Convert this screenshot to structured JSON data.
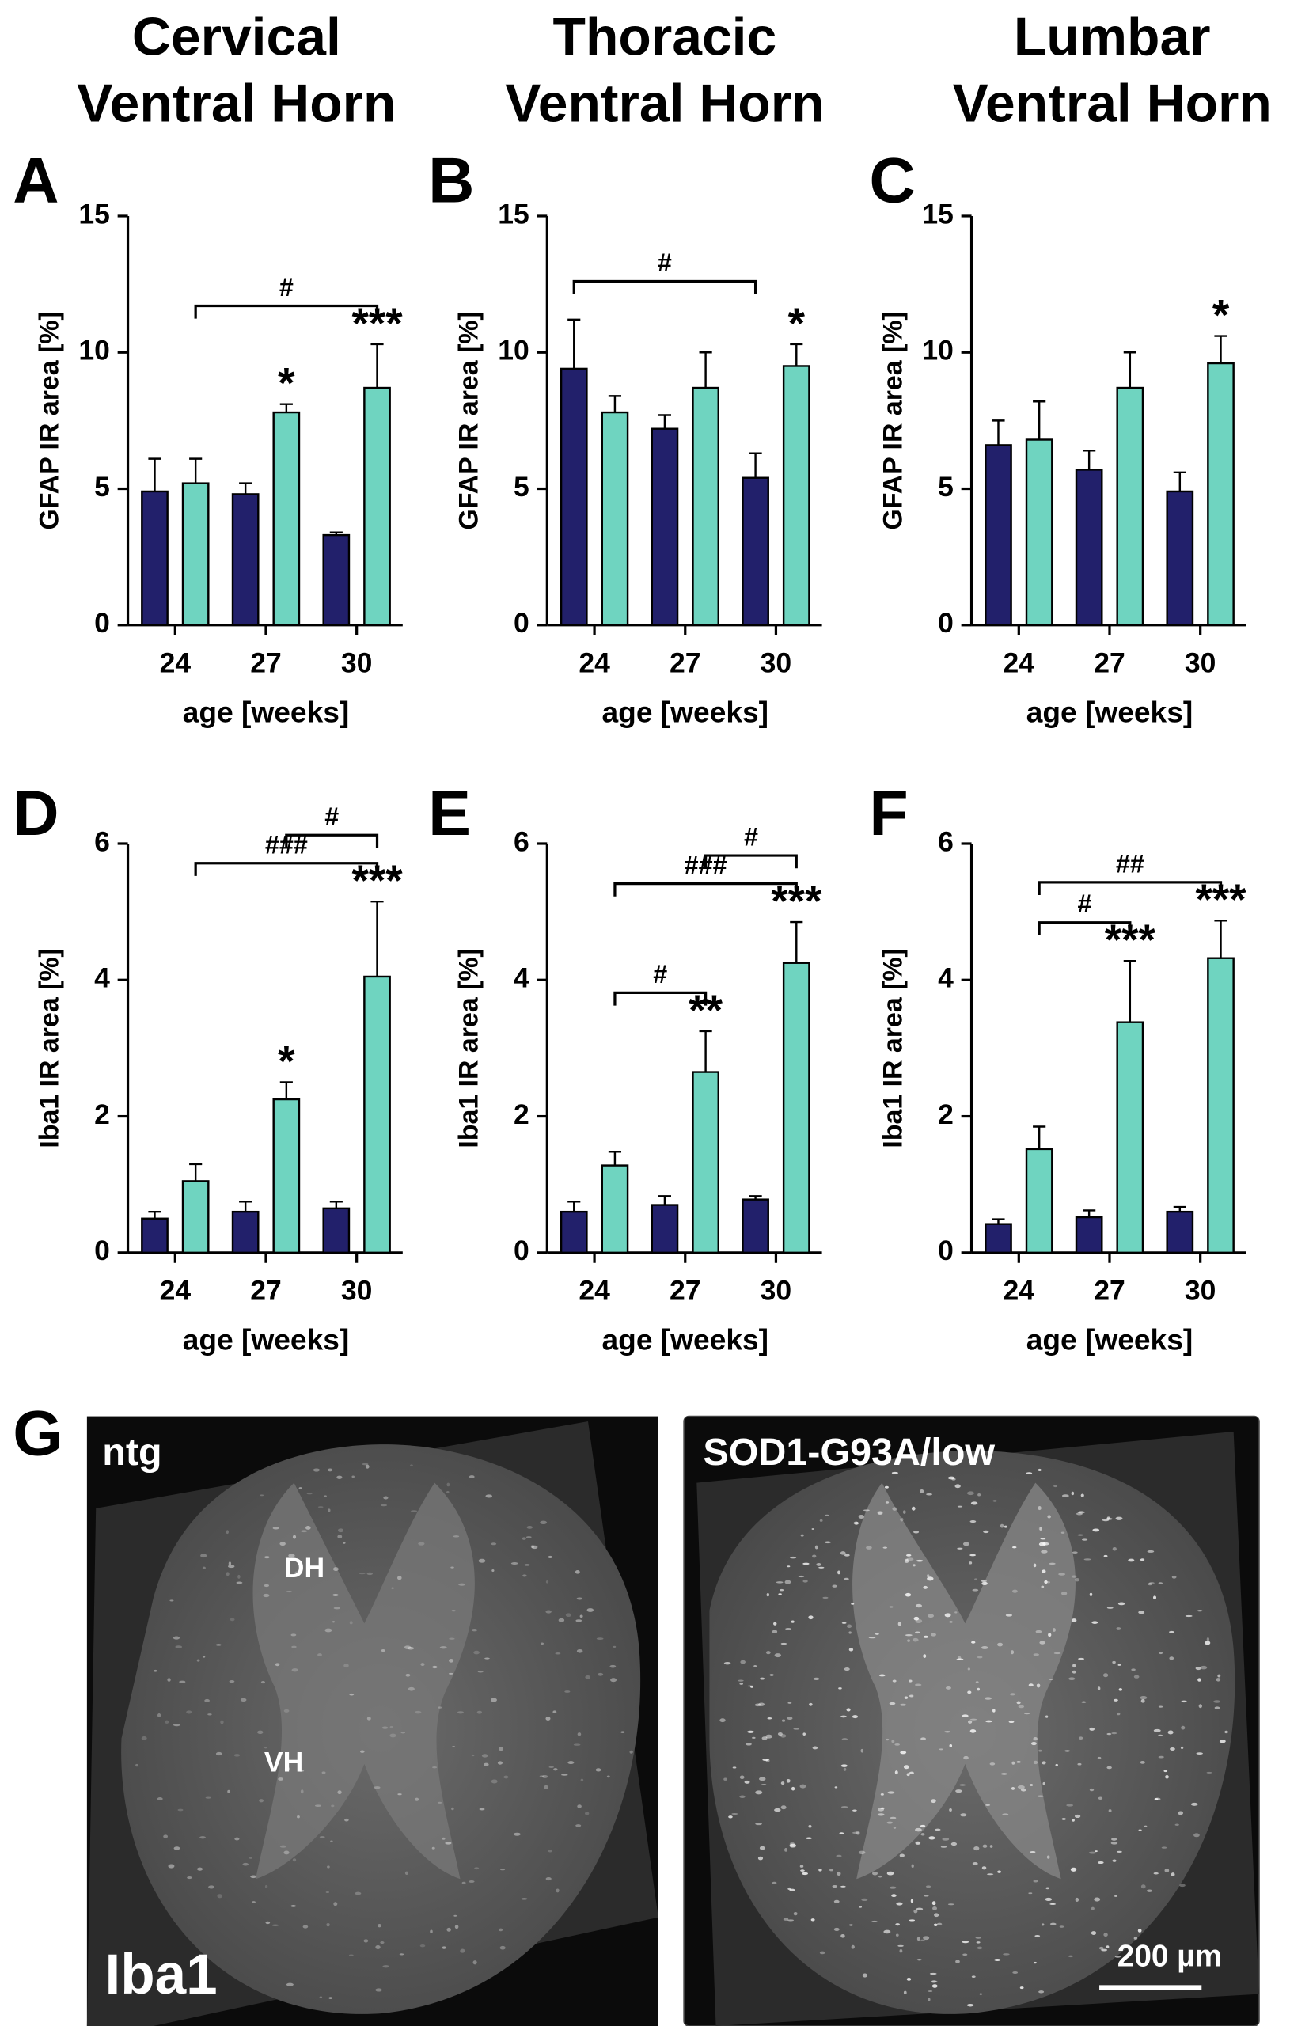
{
  "column_headers": [
    [
      "Cervical",
      "Ventral Horn"
    ],
    [
      "Thoracic",
      "Ventral Horn"
    ],
    [
      "Lumbar",
      "Ventral Horn"
    ]
  ],
  "chart_data": [
    {
      "type": "bar",
      "panel": "A",
      "ylabel": "GFAP IR area [%]",
      "xlabel": "age [weeks]",
      "categories": [
        "24",
        "27",
        "30"
      ],
      "ylim": [
        0,
        15
      ],
      "yticks": [
        0,
        5,
        10,
        15
      ],
      "series": [
        {
          "color": "#22206b",
          "values": [
            4.9,
            4.8,
            3.3
          ],
          "errors": [
            1.2,
            0.4,
            0.1
          ]
        },
        {
          "color": "#6fd4c0",
          "values": [
            5.2,
            7.8,
            8.7
          ],
          "errors": [
            0.9,
            0.3,
            1.6
          ],
          "significance": [
            null,
            "*",
            "***"
          ]
        }
      ],
      "brackets": [
        {
          "label": "#",
          "from": [
            1,
            0
          ],
          "to": [
            1,
            2
          ]
        }
      ]
    },
    {
      "type": "bar",
      "panel": "B",
      "ylabel": "GFAP IR area [%]",
      "xlabel": "age [weeks]",
      "categories": [
        "24",
        "27",
        "30"
      ],
      "ylim": [
        0,
        15
      ],
      "yticks": [
        0,
        5,
        10,
        15
      ],
      "series": [
        {
          "color": "#22206b",
          "values": [
            9.4,
            7.2,
            5.4
          ],
          "errors": [
            1.8,
            0.5,
            0.9
          ]
        },
        {
          "color": "#6fd4c0",
          "values": [
            7.8,
            8.7,
            9.5
          ],
          "errors": [
            0.6,
            1.3,
            0.8
          ],
          "significance": [
            null,
            null,
            "*"
          ]
        }
      ],
      "brackets": [
        {
          "label": "#",
          "from": [
            0,
            0
          ],
          "to": [
            0,
            2
          ]
        }
      ]
    },
    {
      "type": "bar",
      "panel": "C",
      "ylabel": "GFAP IR area [%]",
      "xlabel": "age [weeks]",
      "categories": [
        "24",
        "27",
        "30"
      ],
      "ylim": [
        0,
        15
      ],
      "yticks": [
        0,
        5,
        10,
        15
      ],
      "series": [
        {
          "color": "#22206b",
          "values": [
            6.6,
            5.7,
            4.9
          ],
          "errors": [
            0.9,
            0.7,
            0.7
          ]
        },
        {
          "color": "#6fd4c0",
          "values": [
            6.8,
            8.7,
            9.6
          ],
          "errors": [
            1.4,
            1.3,
            1.0
          ],
          "significance": [
            null,
            null,
            "*"
          ]
        }
      ],
      "brackets": []
    },
    {
      "type": "bar",
      "panel": "D",
      "ylabel": "Iba1 IR area [%]",
      "xlabel": "age [weeks]",
      "categories": [
        "24",
        "27",
        "30"
      ],
      "ylim": [
        0,
        6
      ],
      "yticks": [
        0,
        2,
        4,
        6
      ],
      "series": [
        {
          "color": "#22206b",
          "values": [
            0.5,
            0.6,
            0.65
          ],
          "errors": [
            0.1,
            0.15,
            0.1
          ]
        },
        {
          "color": "#6fd4c0",
          "values": [
            1.05,
            2.25,
            4.05
          ],
          "errors": [
            0.25,
            0.25,
            1.1
          ],
          "significance": [
            null,
            "*",
            "***"
          ]
        }
      ],
      "brackets": [
        {
          "label": "###",
          "from": [
            1,
            0
          ],
          "to": [
            1,
            2
          ]
        },
        {
          "label": "#",
          "from": [
            1,
            1
          ],
          "to": [
            1,
            2
          ]
        }
      ]
    },
    {
      "type": "bar",
      "panel": "E",
      "ylabel": "Iba1 IR area [%]",
      "xlabel": "age [weeks]",
      "categories": [
        "24",
        "27",
        "30"
      ],
      "ylim": [
        0,
        6
      ],
      "yticks": [
        0,
        2,
        4,
        6
      ],
      "series": [
        {
          "color": "#22206b",
          "values": [
            0.6,
            0.7,
            0.78
          ],
          "errors": [
            0.15,
            0.13,
            0.05
          ]
        },
        {
          "color": "#6fd4c0",
          "values": [
            1.28,
            2.65,
            4.25
          ],
          "errors": [
            0.2,
            0.6,
            0.6
          ],
          "significance": [
            null,
            "**",
            "***"
          ]
        }
      ],
      "brackets": [
        {
          "label": "#",
          "from": [
            1,
            0
          ],
          "to": [
            1,
            1
          ]
        },
        {
          "label": "###",
          "from": [
            1,
            0
          ],
          "to": [
            1,
            2
          ]
        },
        {
          "label": "#",
          "from": [
            1,
            1
          ],
          "to": [
            1,
            2
          ]
        }
      ]
    },
    {
      "type": "bar",
      "panel": "F",
      "ylabel": "Iba1 IR area [%]",
      "xlabel": "age [weeks]",
      "categories": [
        "24",
        "27",
        "30"
      ],
      "ylim": [
        0,
        6
      ],
      "yticks": [
        0,
        2,
        4,
        6
      ],
      "series": [
        {
          "color": "#22206b",
          "values": [
            0.42,
            0.52,
            0.6
          ],
          "errors": [
            0.07,
            0.1,
            0.07
          ]
        },
        {
          "color": "#6fd4c0",
          "values": [
            1.52,
            3.38,
            4.32
          ],
          "errors": [
            0.33,
            0.9,
            0.55
          ],
          "significance": [
            null,
            "***",
            "***"
          ]
        }
      ],
      "brackets": [
        {
          "label": "#",
          "from": [
            1,
            0
          ],
          "to": [
            1,
            1
          ]
        },
        {
          "label": "##",
          "from": [
            1,
            0
          ],
          "to": [
            1,
            2
          ]
        }
      ]
    }
  ],
  "micrographs": {
    "panel": "G",
    "stain": "Iba1",
    "scale_bar": "200 µm",
    "images": [
      {
        "label": "ntg",
        "regions": [
          "DH",
          "VH"
        ]
      },
      {
        "label": "SOD1-G93A/low",
        "regions": []
      }
    ]
  }
}
